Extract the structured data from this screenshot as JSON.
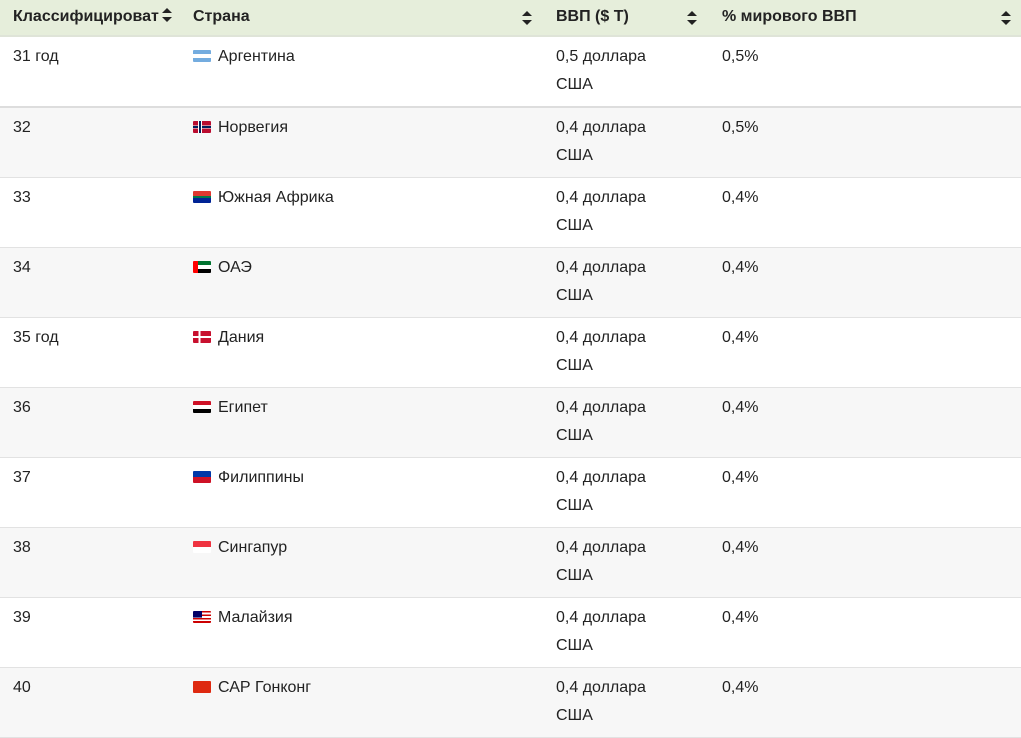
{
  "header": {
    "rank": "Классифицироват",
    "country": "Страна",
    "gdp": "ВВП ($ Т)",
    "share": "% мирового ВВП"
  },
  "rows": [
    {
      "rank": "31 год",
      "country": "Аргентина",
      "flag": "argentina",
      "gdp1": "0,5 доллара",
      "gdp2": "США",
      "share": "0,5%"
    },
    {
      "rank": "32",
      "country": "Норвегия",
      "flag": "norway",
      "gdp1": "0,4 доллара",
      "gdp2": "США",
      "share": "0,5%"
    },
    {
      "rank": "33",
      "country": "Южная Африка",
      "flag": "south-africa",
      "gdp1": "0,4 доллара",
      "gdp2": "США",
      "share": "0,4%"
    },
    {
      "rank": "34",
      "country": "ОАЭ",
      "flag": "uae",
      "gdp1": "0,4 доллара",
      "gdp2": "США",
      "share": "0,4%"
    },
    {
      "rank": "35 год",
      "country": "Дания",
      "flag": "denmark",
      "gdp1": "0,4 доллара",
      "gdp2": "США",
      "share": "0,4%"
    },
    {
      "rank": "36",
      "country": "Египет",
      "flag": "egypt",
      "gdp1": "0,4 доллара",
      "gdp2": "США",
      "share": "0,4%"
    },
    {
      "rank": "37",
      "country": "Филиппины",
      "flag": "philippines",
      "gdp1": "0,4 доллара",
      "gdp2": "США",
      "share": "0,4%"
    },
    {
      "rank": "38",
      "country": "Сингапур",
      "flag": "singapore",
      "gdp1": "0,4 доллара",
      "gdp2": "США",
      "share": "0,4%"
    },
    {
      "rank": "39",
      "country": "Малайзия",
      "flag": "malaysia",
      "gdp1": "0,4 доллара",
      "gdp2": "США",
      "share": "0,4%"
    },
    {
      "rank": "40",
      "country": "САР Гонконг",
      "flag": "hong-kong",
      "gdp1": "0,4 доллара",
      "gdp2": "США",
      "share": "0,4%"
    }
  ],
  "colors": {
    "header_bg": "#e6eedb",
    "row_alt": "#f7f7f7"
  }
}
